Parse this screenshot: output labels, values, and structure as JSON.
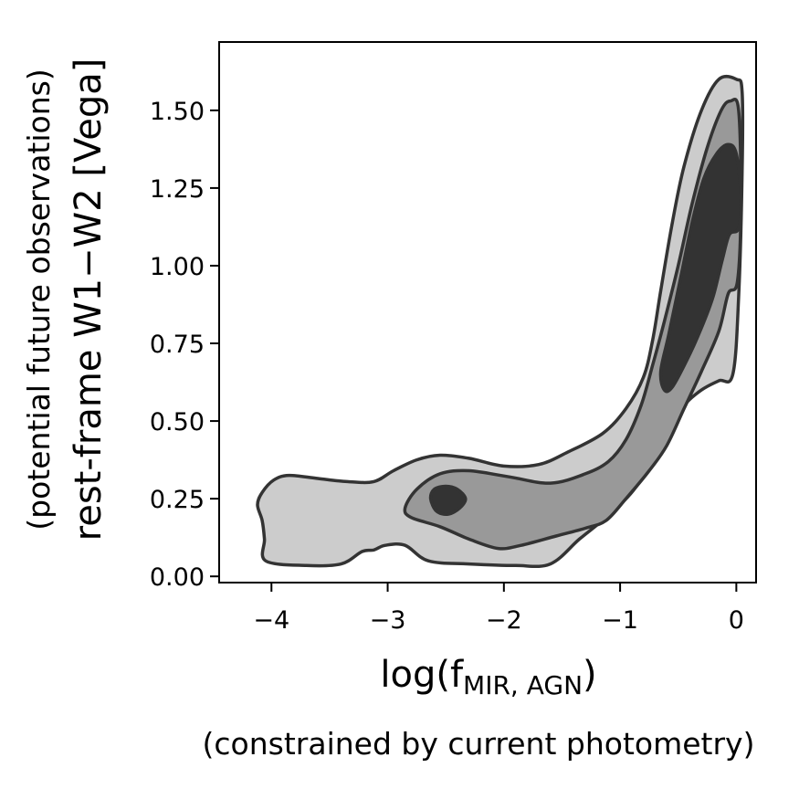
{
  "chart_data": {
    "type": "contour",
    "xlabel": {
      "main": "log(f",
      "subscript": "MIR, AGN",
      "close": ")",
      "note": "(constrained by current photometry)"
    },
    "ylabel": {
      "main": "rest-frame W1−W2 [Vega]",
      "note": "(potential future observations)"
    },
    "xlim": [
      -4.45,
      0.17
    ],
    "ylim": [
      -0.02,
      1.72
    ],
    "xticks": [
      {
        "value": -4,
        "label": "−4"
      },
      {
        "value": -3,
        "label": "−3"
      },
      {
        "value": -2,
        "label": "−2"
      },
      {
        "value": -1,
        "label": "−1"
      },
      {
        "value": 0,
        "label": "0"
      }
    ],
    "yticks": [
      {
        "value": 0.0,
        "label": "0.00"
      },
      {
        "value": 0.25,
        "label": "0.25"
      },
      {
        "value": 0.5,
        "label": "0.50"
      },
      {
        "value": 0.75,
        "label": "0.75"
      },
      {
        "value": 1.0,
        "label": "1.00"
      },
      {
        "value": 1.25,
        "label": "1.25"
      },
      {
        "value": 1.5,
        "label": "1.50"
      }
    ],
    "grid": false,
    "colors": {
      "outer": "#cccccc",
      "middle": "#999999",
      "inner": "#333333",
      "stroke": "#333333"
    },
    "contours": [
      {
        "level": "outer",
        "points": [
          [
            -4.05,
            0.05
          ],
          [
            -3.7,
            0.035
          ],
          [
            -3.4,
            0.04
          ],
          [
            -3.22,
            0.08
          ],
          [
            -3.12,
            0.085
          ],
          [
            -3.02,
            0.1
          ],
          [
            -2.85,
            0.1
          ],
          [
            -2.65,
            0.05
          ],
          [
            -2.3,
            0.04
          ],
          [
            -1.9,
            0.035
          ],
          [
            -1.6,
            0.04
          ],
          [
            -1.35,
            0.12
          ],
          [
            -1.12,
            0.19
          ],
          [
            -0.9,
            0.27
          ],
          [
            -0.7,
            0.38
          ],
          [
            -0.55,
            0.48
          ],
          [
            -0.45,
            0.55
          ],
          [
            -0.3,
            0.6
          ],
          [
            -0.15,
            0.63
          ],
          [
            -0.03,
            0.65
          ],
          [
            0.02,
            0.9
          ],
          [
            0.05,
            1.3
          ],
          [
            0.05,
            1.56
          ],
          [
            0.0,
            1.6
          ],
          [
            -0.15,
            1.6
          ],
          [
            -0.3,
            1.5
          ],
          [
            -0.45,
            1.32
          ],
          [
            -0.55,
            1.14
          ],
          [
            -0.65,
            0.92
          ],
          [
            -0.72,
            0.76
          ],
          [
            -0.8,
            0.64
          ],
          [
            -0.95,
            0.54
          ],
          [
            -1.15,
            0.46
          ],
          [
            -1.45,
            0.4
          ],
          [
            -1.7,
            0.36
          ],
          [
            -2.0,
            0.355
          ],
          [
            -2.3,
            0.38
          ],
          [
            -2.55,
            0.39
          ],
          [
            -2.75,
            0.375
          ],
          [
            -2.95,
            0.34
          ],
          [
            -3.12,
            0.305
          ],
          [
            -3.35,
            0.305
          ],
          [
            -3.6,
            0.315
          ],
          [
            -3.85,
            0.325
          ],
          [
            -3.98,
            0.31
          ],
          [
            -4.08,
            0.27
          ],
          [
            -4.12,
            0.23
          ],
          [
            -4.08,
            0.18
          ],
          [
            -4.06,
            0.12
          ]
        ]
      },
      {
        "level": "middle",
        "points": [
          [
            -2.85,
            0.22
          ],
          [
            -2.75,
            0.28
          ],
          [
            -2.55,
            0.33
          ],
          [
            -2.3,
            0.34
          ],
          [
            -1.95,
            0.32
          ],
          [
            -1.6,
            0.3
          ],
          [
            -1.3,
            0.33
          ],
          [
            -1.1,
            0.37
          ],
          [
            -0.95,
            0.44
          ],
          [
            -0.82,
            0.55
          ],
          [
            -0.72,
            0.68
          ],
          [
            -0.62,
            0.82
          ],
          [
            -0.5,
            1.0
          ],
          [
            -0.38,
            1.2
          ],
          [
            -0.25,
            1.38
          ],
          [
            -0.13,
            1.5
          ],
          [
            -0.05,
            1.53
          ],
          [
            0.02,
            1.5
          ],
          [
            0.04,
            1.2
          ],
          [
            0.01,
            0.95
          ],
          [
            -0.07,
            0.91
          ],
          [
            -0.15,
            0.79
          ],
          [
            -0.3,
            0.66
          ],
          [
            -0.45,
            0.54
          ],
          [
            -0.6,
            0.42
          ],
          [
            -0.75,
            0.34
          ],
          [
            -0.95,
            0.25
          ],
          [
            -1.12,
            0.18
          ],
          [
            -1.3,
            0.155
          ],
          [
            -1.55,
            0.13
          ],
          [
            -1.85,
            0.1
          ],
          [
            -2.05,
            0.09
          ],
          [
            -2.3,
            0.12
          ],
          [
            -2.55,
            0.16
          ],
          [
            -2.8,
            0.19
          ]
        ]
      },
      {
        "level": "inner",
        "points": [
          [
            -0.62,
            0.6
          ],
          [
            -0.65,
            0.66
          ],
          [
            -0.58,
            0.78
          ],
          [
            -0.48,
            0.96
          ],
          [
            -0.38,
            1.14
          ],
          [
            -0.28,
            1.28
          ],
          [
            -0.17,
            1.36
          ],
          [
            -0.07,
            1.39
          ],
          [
            0.0,
            1.36
          ],
          [
            0.04,
            1.22
          ],
          [
            0.02,
            1.12
          ],
          [
            -0.06,
            1.1
          ],
          [
            -0.12,
            1.02
          ],
          [
            -0.2,
            0.9
          ],
          [
            -0.3,
            0.8
          ],
          [
            -0.42,
            0.7
          ],
          [
            -0.55,
            0.61
          ]
        ]
      },
      {
        "level": "inner",
        "points": [
          [
            -2.63,
            0.25
          ],
          [
            -2.6,
            0.28
          ],
          [
            -2.5,
            0.29
          ],
          [
            -2.4,
            0.28
          ],
          [
            -2.33,
            0.25
          ],
          [
            -2.38,
            0.22
          ],
          [
            -2.48,
            0.2
          ],
          [
            -2.58,
            0.21
          ]
        ]
      }
    ]
  }
}
